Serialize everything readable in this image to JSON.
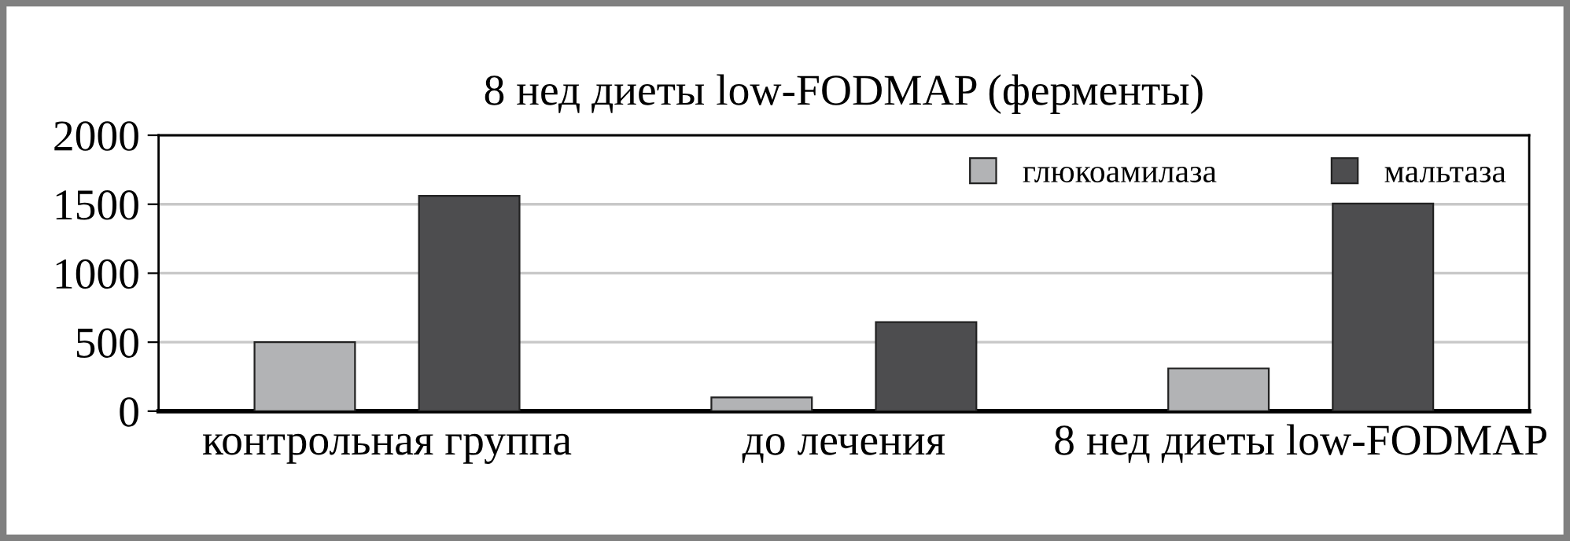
{
  "chart_data": {
    "type": "bar",
    "title": "8 нед диеты low-FODMAP (ферменты)",
    "categories": [
      "контрольная группа",
      "до лечения",
      "8 нед диеты low-FODMAP"
    ],
    "series": [
      {
        "name": "глюкоамилаза",
        "color": "#b2b3b5",
        "values": [
          500,
          100,
          310
        ]
      },
      {
        "name": "мальтаза",
        "color": "#4d4d4f",
        "values": [
          1560,
          645,
          1505
        ]
      }
    ],
    "ylim": [
      0,
      2000
    ],
    "yticks": [
      0,
      500,
      1000,
      1500,
      2000
    ],
    "grid": "y",
    "legend": "top right"
  }
}
